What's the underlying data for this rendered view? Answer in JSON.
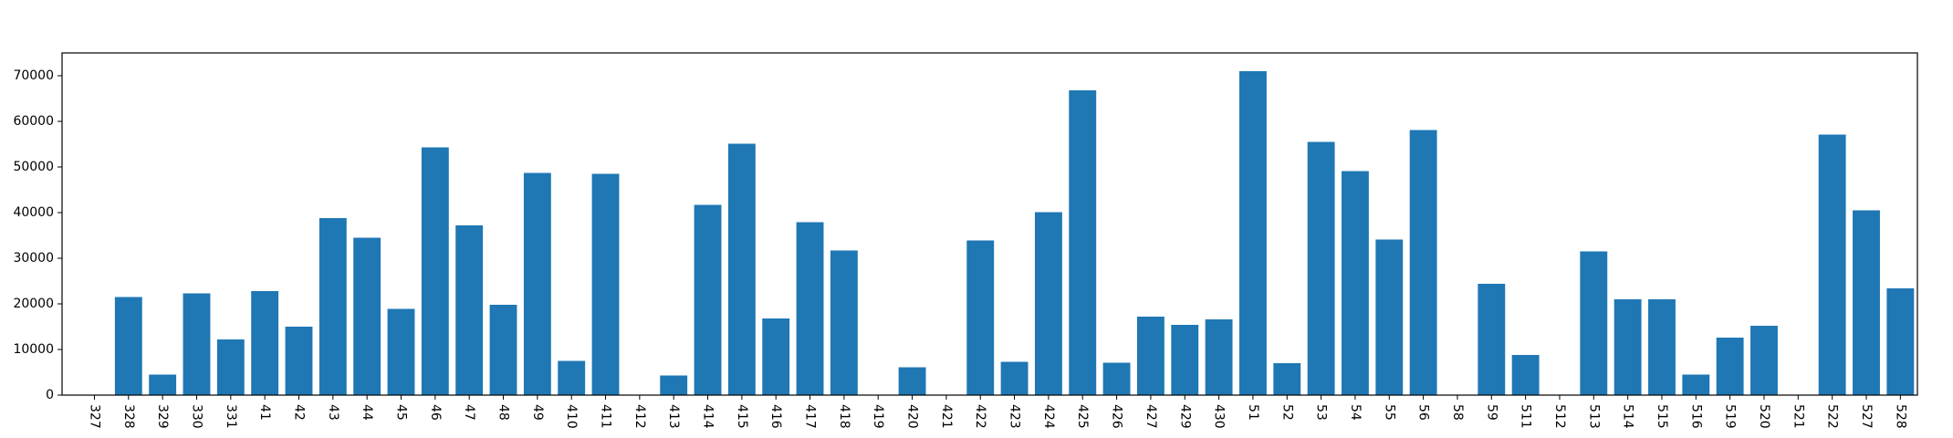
{
  "chart_data": {
    "type": "bar",
    "categories": [
      "327",
      "328",
      "329",
      "330",
      "331",
      "41",
      "42",
      "43",
      "44",
      "45",
      "46",
      "47",
      "48",
      "49",
      "410",
      "411",
      "412",
      "413",
      "414",
      "415",
      "416",
      "417",
      "418",
      "419",
      "420",
      "421",
      "422",
      "423",
      "424",
      "425",
      "426",
      "427",
      "429",
      "430",
      "51",
      "52",
      "53",
      "54",
      "55",
      "56",
      "58",
      "59",
      "511",
      "512",
      "513",
      "514",
      "515",
      "516",
      "519",
      "520",
      "521",
      "522",
      "527",
      "528"
    ],
    "values": [
      0,
      21500,
      4500,
      22300,
      12200,
      22800,
      15000,
      38800,
      34500,
      18900,
      54300,
      37200,
      19800,
      48700,
      7500,
      48500,
      0,
      4300,
      41700,
      55100,
      16800,
      37900,
      31700,
      0,
      6100,
      0,
      33900,
      7300,
      40100,
      66800,
      7100,
      17200,
      15400,
      16600,
      71000,
      7000,
      55500,
      49100,
      34100,
      58100,
      0,
      24400,
      8800,
      0,
      31500,
      21000,
      21000,
      4500,
      12600,
      15200,
      0,
      57100,
      40500,
      23400
    ],
    "title": "",
    "xlabel": "",
    "ylabel": "",
    "ylim": [
      0,
      75000
    ],
    "yticks": [
      "0",
      "10000",
      "20000",
      "30000",
      "40000",
      "50000",
      "60000",
      "70000"
    ],
    "bar_color": "#1f77b4",
    "grid": false,
    "legend": "none"
  }
}
